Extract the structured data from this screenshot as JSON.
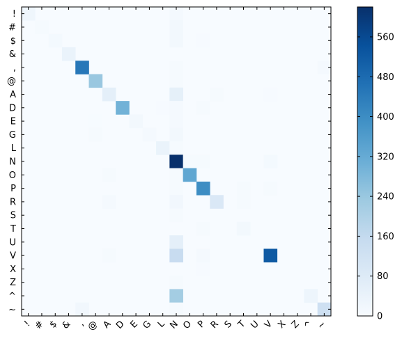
{
  "chart_data": {
    "type": "heatmap",
    "title": "",
    "xlabel": "",
    "ylabel": "",
    "labels": [
      "!",
      "#",
      "$",
      "&",
      ",",
      "@",
      "A",
      "D",
      "E",
      "G",
      "L",
      "N",
      "O",
      "P",
      "R",
      "S",
      "T",
      "U",
      "V",
      "X",
      "Z",
      "^",
      "~"
    ],
    "colormap": "Blues",
    "colorbar": {
      "min": 0,
      "max": 620,
      "ticks": [
        0,
        80,
        160,
        240,
        320,
        400,
        480,
        560
      ]
    },
    "grid": false,
    "cells": [
      [
        0,
        0,
        25
      ],
      [
        0,
        11,
        10
      ],
      [
        1,
        1,
        5
      ],
      [
        1,
        11,
        15
      ],
      [
        2,
        2,
        12
      ],
      [
        2,
        11,
        15
      ],
      [
        2,
        13,
        3
      ],
      [
        3,
        3,
        40
      ],
      [
        4,
        4,
        450
      ],
      [
        4,
        11,
        5
      ],
      [
        4,
        22,
        10
      ],
      [
        5,
        5,
        240
      ],
      [
        5,
        11,
        5
      ],
      [
        6,
        6,
        60
      ],
      [
        6,
        11,
        55
      ],
      [
        6,
        14,
        5
      ],
      [
        6,
        18,
        3
      ],
      [
        7,
        7,
        300
      ],
      [
        7,
        10,
        3
      ],
      [
        7,
        11,
        10
      ],
      [
        7,
        13,
        5
      ],
      [
        8,
        5,
        2
      ],
      [
        8,
        8,
        15
      ],
      [
        8,
        11,
        10
      ],
      [
        9,
        5,
        5
      ],
      [
        9,
        9,
        10
      ],
      [
        9,
        11,
        15
      ],
      [
        10,
        10,
        40
      ],
      [
        10,
        11,
        5
      ],
      [
        11,
        11,
        620
      ],
      [
        11,
        12,
        5
      ],
      [
        11,
        13,
        5
      ],
      [
        11,
        18,
        12
      ],
      [
        12,
        6,
        5
      ],
      [
        12,
        11,
        5
      ],
      [
        12,
        12,
        330
      ],
      [
        13,
        11,
        5
      ],
      [
        13,
        13,
        400
      ],
      [
        13,
        16,
        5
      ],
      [
        13,
        18,
        5
      ],
      [
        14,
        6,
        10
      ],
      [
        14,
        11,
        20
      ],
      [
        14,
        14,
        90
      ],
      [
        14,
        16,
        5
      ],
      [
        15,
        11,
        5
      ],
      [
        16,
        13,
        5
      ],
      [
        16,
        16,
        15
      ],
      [
        17,
        11,
        60
      ],
      [
        18,
        6,
        5
      ],
      [
        18,
        11,
        150
      ],
      [
        18,
        13,
        10
      ],
      [
        18,
        18,
        520
      ],
      [
        19,
        13,
        3
      ],
      [
        20,
        11,
        5
      ],
      [
        21,
        11,
        220
      ],
      [
        21,
        21,
        30
      ],
      [
        22,
        4,
        20
      ],
      [
        22,
        11,
        5
      ],
      [
        22,
        22,
        130
      ]
    ]
  }
}
